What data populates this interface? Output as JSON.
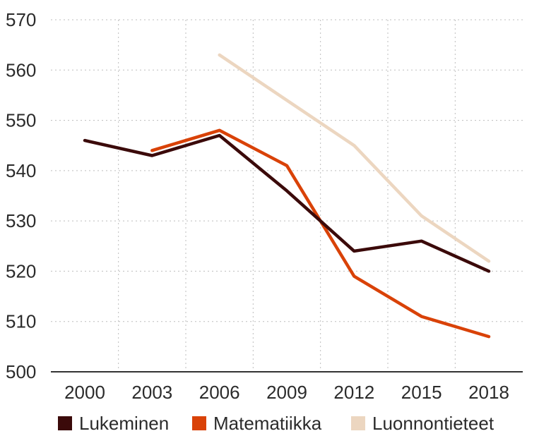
{
  "chart_data": {
    "type": "line",
    "title": "",
    "xlabel": "",
    "ylabel": "",
    "categories": [
      "2000",
      "2003",
      "2006",
      "2009",
      "2012",
      "2015",
      "2018"
    ],
    "ylim": [
      500,
      570
    ],
    "yticks": [
      500,
      510,
      520,
      530,
      540,
      550,
      560,
      570
    ],
    "grid": "dotted",
    "legend_position": "bottom",
    "series": [
      {
        "name": "Lukeminen",
        "color": "#3b0a0a",
        "values": [
          546,
          543,
          547,
          536,
          524,
          526,
          520
        ]
      },
      {
        "name": "Matematiikka",
        "color": "#d94208",
        "values": [
          null,
          544,
          548,
          541,
          519,
          511,
          507
        ]
      },
      {
        "name": "Luonnontieteet",
        "color": "#ecd6c0",
        "values": [
          null,
          null,
          563,
          554,
          545,
          531,
          522
        ]
      }
    ]
  }
}
